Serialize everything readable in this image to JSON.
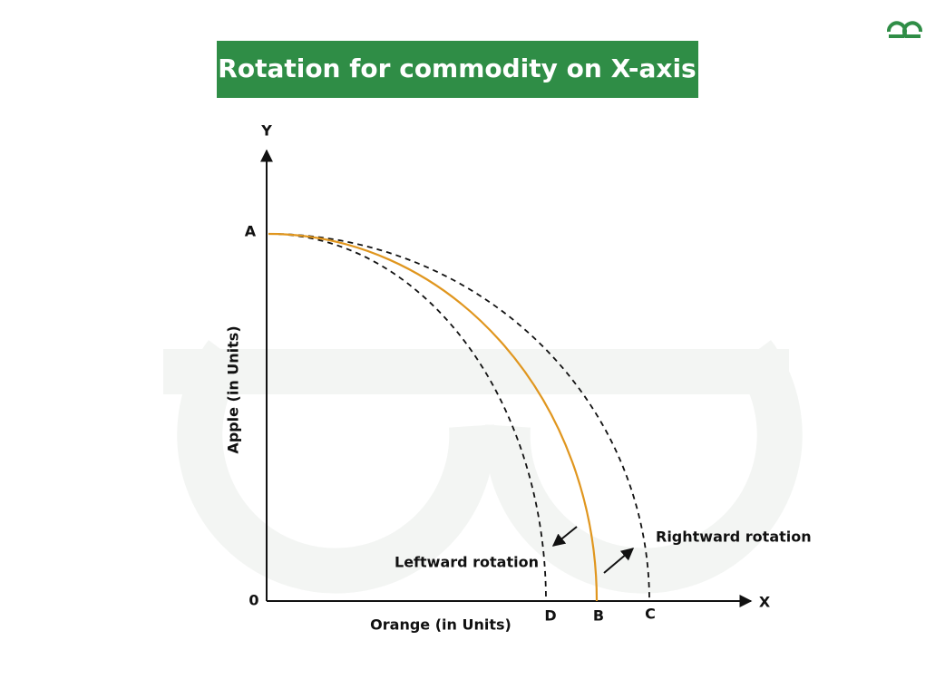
{
  "title": "Rotation for commodity on X-axis",
  "axes": {
    "y_letter": "Y",
    "x_letter": "X",
    "origin": "0",
    "y_title": "Apple (in Units)",
    "x_title": "Orange (in Units)"
  },
  "points": {
    "a": "A",
    "b": "B",
    "c": "C",
    "d": "D"
  },
  "annotations": {
    "leftward": "Leftward rotation",
    "rightward": "Rightward rotation"
  }
}
